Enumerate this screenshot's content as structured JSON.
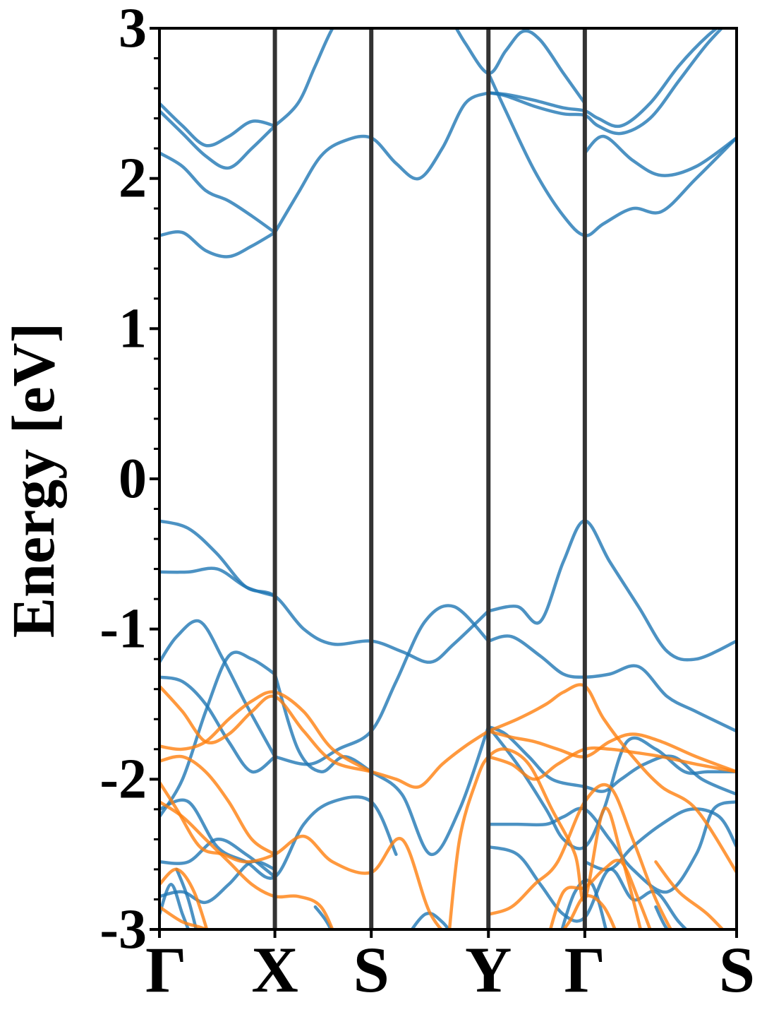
{
  "chart_data": {
    "type": "line",
    "title": "",
    "xlabel": "",
    "ylabel": "Energy [eV]",
    "ylim": [
      -3,
      3
    ],
    "yticks": [
      -3,
      -2,
      -1,
      0,
      1,
      2,
      3
    ],
    "ytick_labels": [
      "-3",
      "-2",
      "-1",
      "0",
      "1",
      "2",
      "3"
    ],
    "minor_ytick_step": 0.2,
    "grid": false,
    "legend": "none",
    "colors": {
      "spin_up": "#1f77b4",
      "spin_down": "#ff7f0e",
      "kpoint_lines": "#333333",
      "frame": "#000000"
    },
    "kpath": {
      "labels": [
        "Γ",
        "X",
        "S",
        "Y",
        "Γ",
        "S"
      ],
      "positions": [
        0,
        0.2,
        0.367,
        0.57,
        0.737,
        1.0
      ]
    },
    "series": [
      {
        "group": "spin_up",
        "x": [
          0,
          0.04,
          0.08,
          0.12,
          0.16,
          0.2
        ],
        "y": [
          2.5,
          2.35,
          2.22,
          2.28,
          2.38,
          2.35
        ]
      },
      {
        "group": "spin_up",
        "x": [
          0,
          0.04,
          0.08,
          0.12,
          0.16,
          0.2
        ],
        "y": [
          2.45,
          2.3,
          2.15,
          2.07,
          2.2,
          2.35
        ]
      },
      {
        "group": "spin_up",
        "x": [
          0,
          0.04,
          0.08,
          0.12,
          0.16,
          0.2
        ],
        "y": [
          2.17,
          2.08,
          1.92,
          1.85,
          1.75,
          1.64
        ]
      },
      {
        "group": "spin_up",
        "x": [
          0,
          0.04,
          0.08,
          0.12,
          0.16,
          0.2
        ],
        "y": [
          1.62,
          1.64,
          1.52,
          1.48,
          1.55,
          1.64
        ]
      },
      {
        "group": "spin_up",
        "x": [
          0.2,
          0.24,
          0.28,
          0.32,
          0.367,
          0.41,
          0.45,
          0.49,
          0.53,
          0.57
        ],
        "y": [
          1.64,
          1.9,
          2.15,
          2.25,
          2.27,
          2.1,
          2.0,
          2.2,
          2.5,
          2.57
        ]
      },
      {
        "group": "spin_up",
        "x": [
          0.2,
          0.24,
          0.27,
          0.3,
          0.33
        ],
        "y": [
          2.35,
          2.5,
          2.75,
          3.0,
          3.15
        ]
      },
      {
        "group": "spin_up",
        "x": [
          0.5,
          0.53,
          0.57,
          0.6,
          0.63,
          0.66,
          0.7,
          0.737
        ],
        "y": [
          3.1,
          2.9,
          2.7,
          2.85,
          2.98,
          2.92,
          2.7,
          2.5
        ]
      },
      {
        "group": "spin_up",
        "x": [
          0.57,
          0.6,
          0.65,
          0.7,
          0.737,
          0.76,
          0.8,
          0.85,
          0.9,
          0.95,
          1.0
        ],
        "y": [
          2.57,
          2.56,
          2.52,
          2.47,
          2.45,
          2.4,
          2.35,
          2.5,
          2.75,
          2.95,
          3.1
        ]
      },
      {
        "group": "spin_up",
        "x": [
          0.57,
          0.6,
          0.65,
          0.7,
          0.737,
          0.76,
          0.8,
          0.85,
          0.9,
          0.95,
          1.0
        ],
        "y": [
          2.57,
          2.55,
          2.48,
          2.43,
          2.42,
          2.35,
          2.3,
          2.4,
          2.65,
          2.9,
          3.1
        ]
      },
      {
        "group": "spin_up",
        "x": [
          0.57,
          0.6,
          0.65,
          0.7,
          0.737,
          0.77,
          0.82,
          0.87,
          0.93,
          1.0
        ],
        "y": [
          2.7,
          2.45,
          2.05,
          1.75,
          1.62,
          1.7,
          1.8,
          1.78,
          2.0,
          2.27
        ]
      },
      {
        "group": "spin_up",
        "x": [
          0.737,
          0.77,
          0.82,
          0.87,
          0.93,
          1.0
        ],
        "y": [
          2.17,
          2.28,
          2.12,
          2.02,
          2.08,
          2.27
        ]
      },
      {
        "group": "spin_up",
        "x": [
          0,
          0.05,
          0.1,
          0.15,
          0.2,
          0.25,
          0.3,
          0.367,
          0.42,
          0.47,
          0.51,
          0.57
        ],
        "y": [
          -0.28,
          -0.33,
          -0.5,
          -0.72,
          -0.78,
          -1.0,
          -1.1,
          -1.08,
          -1.15,
          -1.22,
          -1.1,
          -0.88
        ]
      },
      {
        "group": "spin_up",
        "x": [
          0,
          0.05,
          0.1,
          0.15,
          0.2
        ],
        "y": [
          -0.62,
          -0.62,
          -0.6,
          -0.72,
          -0.78
        ]
      },
      {
        "group": "spin_up",
        "x": [
          0.2,
          0.26,
          0.31,
          0.367,
          0.41,
          0.46,
          0.51,
          0.57
        ],
        "y": [
          -1.85,
          -1.9,
          -1.8,
          -1.68,
          -1.35,
          -0.95,
          -0.85,
          -1.08
        ]
      },
      {
        "group": "spin_up",
        "x": [
          0.57,
          0.61,
          0.66,
          0.7,
          0.737,
          0.78,
          0.83,
          0.88,
          0.93,
          1.0
        ],
        "y": [
          -1.08,
          -1.05,
          -1.18,
          -1.3,
          -1.32,
          -1.3,
          -1.25,
          -1.45,
          -1.55,
          -1.68
        ]
      },
      {
        "group": "spin_up",
        "x": [
          0.57,
          0.62,
          0.66,
          0.7,
          0.737,
          0.78,
          0.83,
          0.88,
          0.93,
          1.0
        ],
        "y": [
          -0.88,
          -0.85,
          -0.95,
          -0.55,
          -0.28,
          -0.55,
          -0.85,
          -1.15,
          -1.2,
          -1.08
        ]
      },
      {
        "group": "spin_up",
        "x": [
          0,
          0.03,
          0.07,
          0.11,
          0.15,
          0.2
        ],
        "y": [
          -1.22,
          -1.05,
          -0.95,
          -1.2,
          -1.5,
          -1.85
        ]
      },
      {
        "group": "spin_up",
        "x": [
          0,
          0.04,
          0.08,
          0.12,
          0.16,
          0.2
        ],
        "y": [
          -1.32,
          -1.35,
          -1.5,
          -1.75,
          -1.95,
          -1.85
        ]
      },
      {
        "group": "spin_up",
        "x": [
          0,
          0.04,
          0.08,
          0.12,
          0.16,
          0.2
        ],
        "y": [
          -2.25,
          -2.0,
          -1.55,
          -1.18,
          -1.2,
          -1.3
        ]
      },
      {
        "group": "spin_up",
        "x": [
          0.2,
          0.24,
          0.28,
          0.32,
          0.367,
          0.42,
          0.47,
          0.52,
          0.57
        ],
        "y": [
          -1.3,
          -1.8,
          -1.95,
          -1.85,
          -1.95,
          -2.1,
          -2.5,
          -2.2,
          -1.65
        ]
      },
      {
        "group": "spin_up",
        "x": [
          0,
          0.05,
          0.1,
          0.15,
          0.2,
          0.25,
          0.3,
          0.367,
          0.41
        ],
        "y": [
          -2.2,
          -2.15,
          -2.45,
          -2.55,
          -2.65,
          -2.3,
          -2.15,
          -2.15,
          -2.5
        ]
      },
      {
        "group": "spin_up",
        "x": [
          0.57,
          0.62,
          0.67,
          0.7,
          0.737,
          0.77,
          0.81,
          0.86,
          0.91,
          0.95,
          1.0
        ],
        "y": [
          -1.65,
          -1.9,
          -2.2,
          -2.4,
          -2.45,
          -2.2,
          -1.75,
          -1.8,
          -1.95,
          -1.95,
          -1.95
        ]
      },
      {
        "group": "spin_up",
        "x": [
          0.57,
          0.6,
          0.64,
          0.68,
          0.737,
          0.77,
          0.8,
          0.84,
          0.89,
          0.94,
          1.0
        ],
        "y": [
          -1.65,
          -1.7,
          -1.85,
          -2.0,
          -2.05,
          -2.08,
          -2.0,
          -1.9,
          -1.85,
          -2.0,
          -2.1
        ]
      },
      {
        "group": "spin_up",
        "x": [
          0.57,
          0.62,
          0.67,
          0.7,
          0.737,
          0.78,
          0.82,
          0.88,
          0.93,
          0.96,
          1.0
        ],
        "y": [
          -2.3,
          -2.3,
          -2.3,
          -2.25,
          -2.2,
          -2.4,
          -2.6,
          -2.75,
          -2.5,
          -2.2,
          -2.15
        ]
      },
      {
        "group": "spin_up",
        "x": [
          0.57,
          0.62,
          0.66,
          0.7,
          0.737,
          0.78,
          0.82,
          0.86,
          0.9,
          0.94
        ],
        "y": [
          -2.45,
          -2.5,
          -2.7,
          -2.9,
          -2.92,
          -2.6,
          -2.8,
          -2.75,
          -2.95,
          -3.1
        ]
      },
      {
        "group": "spin_up",
        "x": [
          0.737,
          0.78,
          0.82,
          0.87,
          0.92,
          0.97,
          1.0
        ],
        "y": [
          -2.55,
          -2.6,
          -2.45,
          -2.3,
          -2.2,
          -2.25,
          -2.45
        ]
      },
      {
        "group": "spin_up",
        "x": [
          0,
          0.05,
          0.1,
          0.15,
          0.2
        ],
        "y": [
          -2.55,
          -2.55,
          -2.4,
          -2.5,
          -2.65
        ]
      },
      {
        "group": "spin_up",
        "x": [
          0,
          0.04,
          0.08,
          0.12,
          0.16,
          0.2
        ],
        "y": [
          -2.78,
          -2.75,
          -2.82,
          -2.7,
          -2.55,
          -2.6
        ]
      },
      {
        "group": "spin_up",
        "x": [
          0,
          0.02,
          0.04,
          0.06
        ],
        "y": [
          -2.9,
          -2.7,
          -2.9,
          -3.1
        ]
      },
      {
        "group": "spin_up",
        "x": [
          0.03,
          0.05,
          0.07
        ],
        "y": [
          -2.6,
          -2.8,
          -3.1
        ]
      },
      {
        "group": "spin_up",
        "x": [
          0.27,
          0.29,
          0.31
        ],
        "y": [
          -2.85,
          -2.95,
          -3.1
        ]
      },
      {
        "group": "spin_up",
        "x": [
          0.42,
          0.46,
          0.49,
          0.52
        ],
        "y": [
          -3.1,
          -2.9,
          -2.95,
          -3.1
        ]
      },
      {
        "group": "spin_up",
        "x": [
          0.69,
          0.72,
          0.75,
          0.78
        ],
        "y": [
          -3.1,
          -2.75,
          -2.7,
          -3.1
        ]
      },
      {
        "group": "spin_up",
        "x": [
          0.86,
          0.88,
          0.91
        ],
        "y": [
          -2.85,
          -3.0,
          -3.1
        ]
      },
      {
        "group": "spin_down",
        "x": [
          0,
          0.04,
          0.08,
          0.12,
          0.16,
          0.2,
          0.25,
          0.3,
          0.367,
          0.41,
          0.45,
          0.49,
          0.53,
          0.57
        ],
        "y": [
          -1.38,
          -1.55,
          -1.75,
          -1.7,
          -1.55,
          -1.45,
          -1.68,
          -1.88,
          -1.95,
          -2.0,
          -2.05,
          -1.9,
          -1.78,
          -1.68
        ]
      },
      {
        "group": "spin_down",
        "x": [
          0,
          0.04,
          0.08,
          0.12,
          0.16,
          0.2,
          0.25,
          0.3,
          0.367
        ],
        "y": [
          -1.78,
          -1.8,
          -1.75,
          -1.6,
          -1.48,
          -1.42,
          -1.55,
          -1.8,
          -1.95
        ]
      },
      {
        "group": "spin_down",
        "x": [
          0,
          0.04,
          0.08,
          0.12,
          0.16,
          0.2
        ],
        "y": [
          -1.88,
          -1.85,
          -1.95,
          -2.15,
          -2.4,
          -2.5
        ]
      },
      {
        "group": "spin_down",
        "x": [
          0,
          0.03,
          0.07,
          0.11,
          0.15,
          0.2,
          0.25,
          0.3,
          0.367,
          0.42,
          0.47,
          0.52,
          0.57
        ],
        "y": [
          -2.02,
          -2.2,
          -2.45,
          -2.5,
          -2.55,
          -2.5,
          -2.38,
          -2.55,
          -2.62,
          -2.4,
          -2.9,
          -3.1,
          -3.2
        ]
      },
      {
        "group": "spin_down",
        "x": [
          0,
          0.04,
          0.08,
          0.12,
          0.16,
          0.2,
          0.24,
          0.28,
          0.31
        ],
        "y": [
          -2.15,
          -2.25,
          -2.4,
          -2.55,
          -2.7,
          -2.78,
          -2.78,
          -2.85,
          -3.1
        ]
      },
      {
        "group": "spin_down",
        "x": [
          0,
          0.03,
          0.06,
          0.09
        ],
        "y": [
          -2.7,
          -2.6,
          -2.75,
          -3.1
        ]
      },
      {
        "group": "spin_down",
        "x": [
          0,
          0.04,
          0.08,
          0.11
        ],
        "y": [
          -2.85,
          -2.95,
          -3.0,
          -3.1
        ]
      },
      {
        "group": "spin_down",
        "x": [
          0.57,
          0.62,
          0.67,
          0.7,
          0.737,
          0.77,
          0.82,
          0.87,
          0.93,
          1.0
        ],
        "y": [
          -1.68,
          -1.6,
          -1.5,
          -1.42,
          -1.38,
          -1.6,
          -1.85,
          -2.05,
          -2.2,
          -2.62
        ]
      },
      {
        "group": "spin_down",
        "x": [
          0.57,
          0.61,
          0.65,
          0.69,
          0.737,
          0.78,
          0.82,
          0.87,
          0.93,
          1.0
        ],
        "y": [
          -1.68,
          -1.72,
          -1.75,
          -1.8,
          -1.85,
          -1.75,
          -1.7,
          -1.75,
          -1.85,
          -1.95
        ]
      },
      {
        "group": "spin_down",
        "x": [
          0.57,
          0.61,
          0.65,
          0.69,
          0.737,
          0.78,
          0.82,
          0.87,
          0.93,
          1.0
        ],
        "y": [
          -1.85,
          -1.9,
          -2.0,
          -1.9,
          -1.8,
          -1.8,
          -1.82,
          -1.85,
          -1.9,
          -1.95
        ]
      },
      {
        "group": "spin_down",
        "x": [
          0.5,
          0.52,
          0.55,
          0.57,
          0.6,
          0.64,
          0.68,
          0.72,
          0.737,
          0.77,
          0.8,
          0.84
        ],
        "y": [
          -3.1,
          -2.4,
          -2.0,
          -1.85,
          -1.8,
          -1.9,
          -2.2,
          -2.5,
          -2.8,
          -2.2,
          -2.5,
          -3.1
        ]
      },
      {
        "group": "spin_down",
        "x": [
          0.57,
          0.61,
          0.65,
          0.69,
          0.737,
          0.78,
          0.82,
          0.86,
          0.9
        ],
        "y": [
          -2.9,
          -2.85,
          -2.7,
          -2.55,
          -2.15,
          -2.05,
          -2.4,
          -2.8,
          -3.1
        ]
      },
      {
        "group": "spin_down",
        "x": [
          0.67,
          0.7,
          0.737,
          0.77,
          0.8,
          0.83,
          0.86
        ],
        "y": [
          -3.1,
          -2.75,
          -2.72,
          -2.6,
          -2.55,
          -2.8,
          -3.1
        ]
      },
      {
        "group": "spin_down",
        "x": [
          0.68,
          0.71,
          0.737,
          0.77,
          0.8
        ],
        "y": [
          -3.1,
          -2.95,
          -2.78,
          -2.85,
          -3.1
        ]
      },
      {
        "group": "spin_down",
        "x": [
          0.86,
          0.9,
          0.95,
          1.0
        ],
        "y": [
          -2.55,
          -2.75,
          -2.9,
          -3.1
        ]
      }
    ]
  }
}
